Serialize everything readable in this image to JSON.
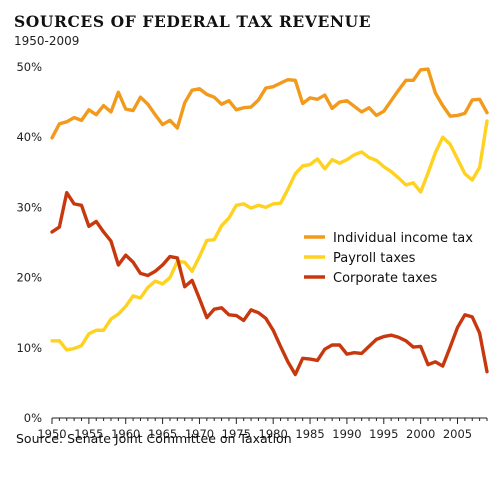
{
  "chart_data": {
    "type": "line",
    "title": "SOURCES OF FEDERAL TAX REVENUE",
    "subtitle": "1950-2009",
    "source": "Source: Senate Joint Committee on Taxation",
    "xlim": [
      1950,
      2009
    ],
    "ylim": [
      0,
      50
    ],
    "x_ticks": [
      1950,
      1955,
      1960,
      1965,
      1970,
      1975,
      1980,
      1985,
      1990,
      1995,
      2000,
      2005
    ],
    "x_tick_labels": [
      "1950",
      "1955",
      "1960",
      "1965",
      "1970",
      "1975",
      "1980",
      "1985",
      "1990",
      "1995",
      "2000",
      "2005"
    ],
    "y_ticks": [
      0,
      10,
      20,
      30,
      40,
      50
    ],
    "y_tick_labels": [
      "0%",
      "10%",
      "20%",
      "30%",
      "40%",
      "50%"
    ],
    "grid": false,
    "legend_position": "right",
    "x": [
      1950,
      1951,
      1952,
      1953,
      1954,
      1955,
      1956,
      1957,
      1958,
      1959,
      1960,
      1961,
      1962,
      1963,
      1964,
      1965,
      1966,
      1967,
      1968,
      1969,
      1970,
      1971,
      1972,
      1973,
      1974,
      1975,
      1976,
      1977,
      1978,
      1979,
      1980,
      1981,
      1982,
      1983,
      1984,
      1985,
      1986,
      1987,
      1988,
      1989,
      1990,
      1991,
      1992,
      1993,
      1994,
      1995,
      1996,
      1997,
      1998,
      1999,
      2000,
      2001,
      2002,
      2003,
      2004,
      2005,
      2006,
      2007,
      2008,
      2009
    ],
    "series": [
      {
        "name": "Individual income tax",
        "color": "#f29a1c",
        "values": [
          39.9,
          41.9,
          42.2,
          42.8,
          42.4,
          43.9,
          43.2,
          44.5,
          43.6,
          46.4,
          44.0,
          43.8,
          45.7,
          44.7,
          43.2,
          41.8,
          42.4,
          41.3,
          44.9,
          46.7,
          46.9,
          46.1,
          45.7,
          44.7,
          45.2,
          43.9,
          44.2,
          44.3,
          45.3,
          47.0,
          47.2,
          47.7,
          48.2,
          48.1,
          44.8,
          45.6,
          45.4,
          46.0,
          44.1,
          45.0,
          45.2,
          44.4,
          43.6,
          44.2,
          43.1,
          43.7,
          45.2,
          46.7,
          48.1,
          48.1,
          49.6,
          49.7,
          46.3,
          44.5,
          43.0,
          43.1,
          43.4,
          45.3,
          45.4,
          43.5
        ]
      },
      {
        "name": "Payroll taxes",
        "color": "#ffd21f",
        "values": [
          11.0,
          11.0,
          9.7,
          9.9,
          10.3,
          12.0,
          12.5,
          12.5,
          14.1,
          14.8,
          15.9,
          17.4,
          17.1,
          18.6,
          19.5,
          19.1,
          20.0,
          22.3,
          22.2,
          20.9,
          23.0,
          25.3,
          25.4,
          27.4,
          28.5,
          30.3,
          30.5,
          29.9,
          30.3,
          30.0,
          30.5,
          30.6,
          32.6,
          34.8,
          35.9,
          36.1,
          36.9,
          35.5,
          36.8,
          36.3,
          36.8,
          37.5,
          37.9,
          37.1,
          36.7,
          35.8,
          35.1,
          34.2,
          33.2,
          33.5,
          32.2,
          34.9,
          37.8,
          40.0,
          39.0,
          36.9,
          34.8,
          33.9,
          35.7,
          42.3
        ]
      },
      {
        "name": "Corporate taxes",
        "color": "#c8380f",
        "values": [
          26.5,
          27.2,
          32.1,
          30.5,
          30.3,
          27.3,
          28.0,
          26.5,
          25.2,
          21.8,
          23.2,
          22.2,
          20.6,
          20.3,
          20.9,
          21.8,
          23.0,
          22.8,
          18.7,
          19.6,
          17.0,
          14.3,
          15.5,
          15.7,
          14.7,
          14.6,
          13.9,
          15.4,
          15.0,
          14.2,
          12.5,
          10.2,
          8.0,
          6.2,
          8.5,
          8.4,
          8.2,
          9.8,
          10.4,
          10.4,
          9.1,
          9.3,
          9.2,
          10.2,
          11.2,
          11.6,
          11.8,
          11.5,
          11.0,
          10.1,
          10.2,
          7.6,
          8.0,
          7.4,
          10.1,
          12.9,
          14.7,
          14.4,
          12.1,
          6.6
        ]
      }
    ]
  }
}
